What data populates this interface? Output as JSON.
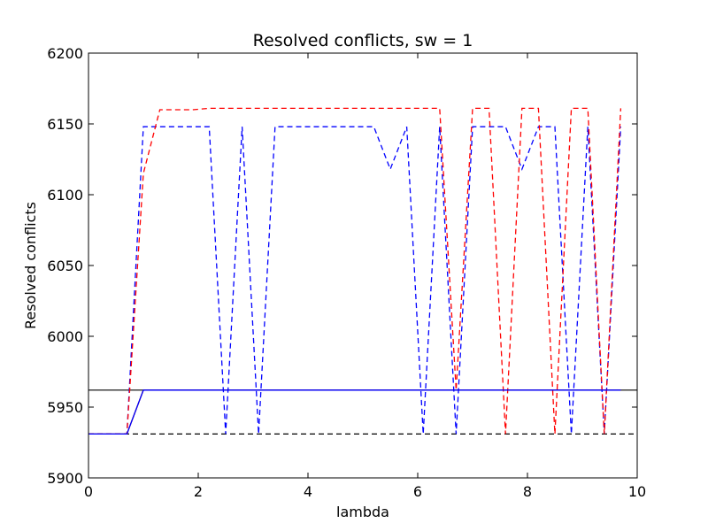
{
  "chart_data": {
    "type": "line",
    "title": "Resolved conflicts, sw = 1",
    "xlabel": "lambda",
    "ylabel": "Resolved conflicts",
    "xlim": [
      0,
      10
    ],
    "ylim": [
      5900,
      6200
    ],
    "xticks": [
      0,
      2,
      4,
      6,
      8,
      10
    ],
    "yticks": [
      5900,
      5950,
      6000,
      6050,
      6100,
      6150,
      6200
    ],
    "grid": false,
    "legend": "none",
    "hlines": [
      {
        "y": 5962,
        "color": "#000000",
        "style": "solid"
      },
      {
        "y": 5931,
        "color": "#000000",
        "style": "dashed"
      }
    ],
    "series": [
      {
        "color": "#0000ff",
        "style": "dashed",
        "x": [
          0,
          0.7,
          1.0,
          2.2,
          2.5,
          2.8,
          3.1,
          3.4,
          5.2,
          5.5,
          5.8,
          6.1,
          6.4,
          6.7,
          7.0,
          7.6,
          7.9,
          8.2,
          8.5,
          8.8,
          9.1,
          9.4,
          9.7
        ],
        "y": [
          5931,
          5931,
          6148,
          6148,
          5931,
          6148,
          5931,
          6148,
          6148,
          6118,
          6148,
          5931,
          6148,
          5931,
          6148,
          6148,
          6118,
          6148,
          6148,
          5931,
          6148,
          5931,
          6148
        ]
      },
      {
        "color": "#ff0000",
        "style": "dashed",
        "x": [
          0,
          0.7,
          1.0,
          1.3,
          1.9,
          2.2,
          6.4,
          6.7,
          7.0,
          7.3,
          7.6,
          7.9,
          8.2,
          8.5,
          8.8,
          9.1,
          9.4,
          9.7
        ],
        "y": [
          5931,
          5931,
          6115,
          6160,
          6160,
          6161,
          6161,
          5962,
          6161,
          6161,
          5931,
          6161,
          6161,
          5931,
          6161,
          6161,
          5931,
          6161
        ]
      },
      {
        "color": "#8b0000",
        "style": "solid",
        "x": [
          0,
          0.7,
          1.0,
          9.7
        ],
        "y": [
          5931,
          5931,
          5962,
          5962
        ]
      },
      {
        "color": "#0000ff",
        "style": "solid",
        "x": [
          0,
          0.7,
          1.0,
          9.7
        ],
        "y": [
          5931,
          5931,
          5962,
          5962
        ]
      }
    ]
  }
}
